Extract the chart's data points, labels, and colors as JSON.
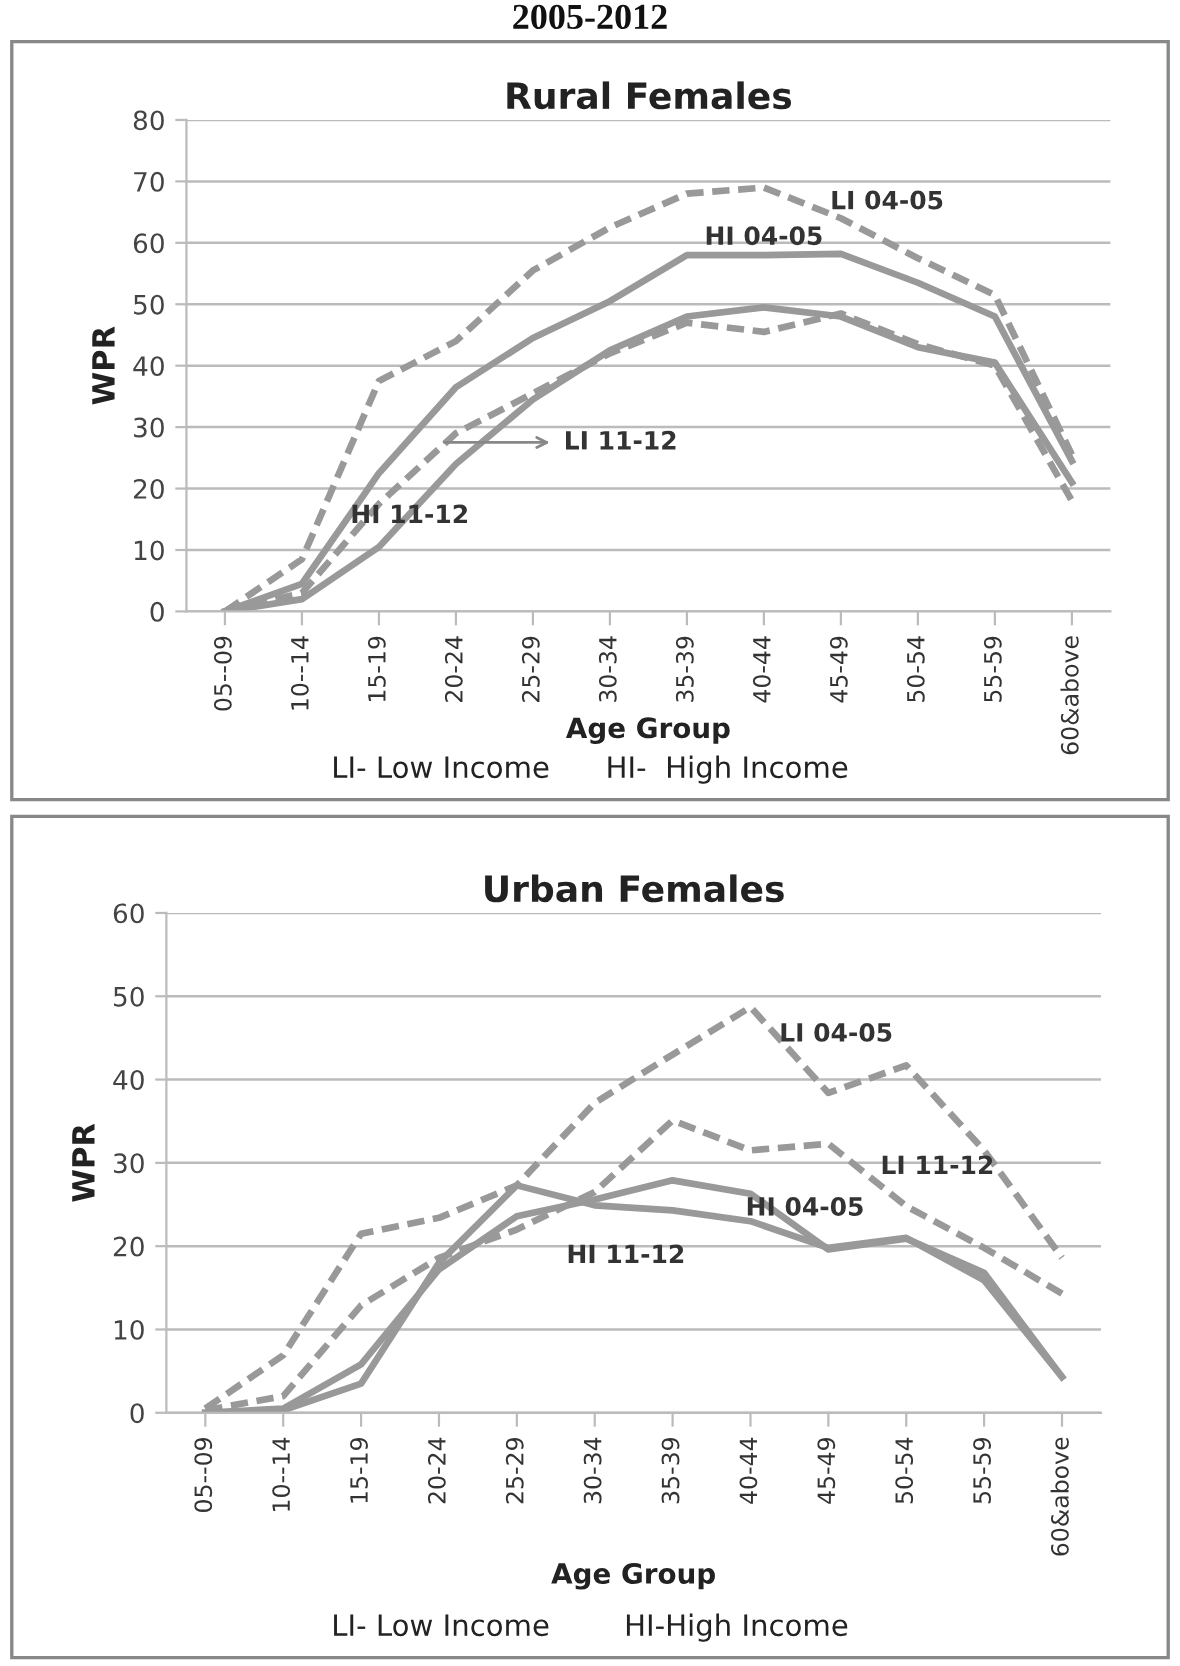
{
  "chart_data": [
    {
      "type": "line",
      "title": "Rural Females",
      "xlabel": "Age Group",
      "ylabel": "WPR",
      "categories": [
        "05--09",
        "10--14",
        "15-19",
        "20-24",
        "25-29",
        "30-34",
        "35-39",
        "40-44",
        "45-49",
        "50-54",
        "55-59",
        "60&above"
      ],
      "series": [
        {
          "color": "#999999",
          "line_style": "dashed",
          "values": [
            0,
            8.5,
            37.5,
            44,
            55.5,
            62.5,
            68,
            69,
            64,
            57.5,
            51.5,
            25.5
          ]
        },
        {
          "color": "#999999",
          "line_style": "solid",
          "values": [
            0,
            4.5,
            22.5,
            36.5,
            44.5,
            50.5,
            58,
            58,
            58.2,
            53.5,
            48,
            24.5
          ]
        },
        {
          "color": "#999999",
          "line_style": "dashed",
          "values": [
            0,
            3,
            17.5,
            29,
            35.5,
            42,
            47,
            45.5,
            48.5,
            43.5,
            40,
            18
          ]
        },
        {
          "color": "#999999",
          "line_style": "solid",
          "values": [
            0,
            2,
            10.5,
            24,
            34.5,
            42.5,
            48,
            49.5,
            48,
            43,
            40.5,
            21
          ]
        }
      ],
      "ylim": [
        0,
        80
      ],
      "yticks": [
        0,
        10,
        20,
        30,
        40,
        50,
        60,
        70,
        80
      ],
      "grid": "y",
      "marker": "none",
      "annotations": [
        "2005-2012",
        "LI- Low Income      HI-  High Income",
        {
          "text": "LI 04-05",
          "x": "45-49",
          "y": 64
        },
        {
          "text": "HI 04-05",
          "x": "40-44",
          "y": 58
        },
        {
          "text": "LI 11-12",
          "x": "20-24",
          "y": 29
        },
        {
          "text": "HI 11-12",
          "x": "20-24",
          "y": 24
        }
      ]
    },
    {
      "type": "line",
      "title": "Urban Females",
      "xlabel": "Age Group",
      "ylabel": "WPR",
      "categories": [
        "05--09",
        "10--14",
        "15-19",
        "20-24",
        "25-29",
        "30-34",
        "35-39",
        "40-44",
        "45-49",
        "50-54",
        "55-59",
        "60&above"
      ],
      "series": [
        {
          "color": "#999999",
          "line_style": "dashed",
          "values": [
            0.5,
            6.9,
            21.5,
            23.4,
            27.3,
            37.2,
            43,
            48.7,
            38.4,
            41.7,
            31.5,
            18.6
          ]
        },
        {
          "color": "#999999",
          "line_style": "dashed",
          "values": [
            0.3,
            2,
            12.9,
            18.6,
            22,
            26.5,
            35.1,
            31.5,
            32.3,
            24.8,
            19.8,
            14.3
          ]
        },
        {
          "color": "#999999",
          "line_style": "solid",
          "values": [
            0,
            0.5,
            5.8,
            17.2,
            23.6,
            25.6,
            27.9,
            26.3,
            19.6,
            20.9,
            16.8,
            4.3
          ]
        },
        {
          "color": "#999999",
          "line_style": "solid",
          "values": [
            0,
            0.3,
            3.5,
            18,
            27.3,
            24.9,
            24.3,
            23,
            19.8,
            21,
            15.9,
            4.3
          ]
        }
      ],
      "ylim": [
        0,
        60
      ],
      "yticks": [
        0,
        10,
        20,
        30,
        40,
        50,
        60
      ],
      "grid": "y",
      "marker": "none",
      "annotations": [
        "LI- Low Income        HI-High Income",
        {
          "text": "LI 04-05",
          "x": "45-49",
          "y": 38.4
        },
        {
          "text": "LI 11-12",
          "x": "50-54",
          "y": 24.8
        },
        {
          "text": "HI 04-05",
          "x": "40-44",
          "y": 26.3
        },
        {
          "text": "HI 11-12",
          "x": "35-39",
          "y": 24.3
        }
      ]
    }
  ]
}
